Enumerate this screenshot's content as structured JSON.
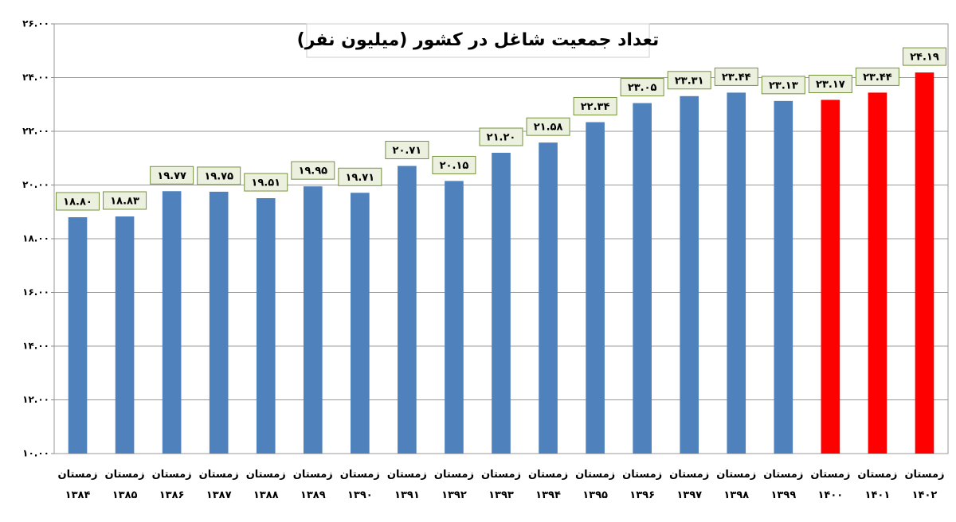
{
  "chart_data": {
    "type": "bar",
    "title": "تعداد جمعیت شاغل در کشور (میلیون نفر)",
    "categories": [
      "زمستان ۱۳۸۴",
      "زمستان ۱۳۸۵",
      "زمستان ۱۳۸۶",
      "زمستان ۱۳۸۷",
      "زمستان ۱۳۸۸",
      "زمستان ۱۳۸۹",
      "زمستان ۱۳۹۰",
      "زمستان ۱۳۹۱",
      "زمستان ۱۳۹۲",
      "زمستان ۱۳۹۳",
      "زمستان ۱۳۹۴",
      "زمستان ۱۳۹۵",
      "زمستان ۱۳۹۶",
      "زمستان ۱۳۹۷",
      "زمستان ۱۳۹۸",
      "زمستان ۱۳۹۹",
      "زمستان ۱۴۰۰",
      "زمستان ۱۴۰۱",
      "زمستان ۱۴۰۲"
    ],
    "values": [
      18.8,
      18.83,
      19.77,
      19.75,
      19.51,
      19.95,
      19.71,
      20.71,
      20.15,
      21.2,
      21.58,
      22.34,
      23.05,
      23.31,
      23.44,
      23.13,
      23.17,
      23.44,
      24.19
    ],
    "value_labels": [
      "۱۸.۸۰",
      "۱۸.۸۳",
      "۱۹.۷۷",
      "۱۹.۷۵",
      "۱۹.۵۱",
      "۱۹.۹۵",
      "۱۹.۷۱",
      "۲۰.۷۱",
      "۲۰.۱۵",
      "۲۱.۲۰",
      "۲۱.۵۸",
      "۲۲.۳۴",
      "۲۳.۰۵",
      "۲۳.۳۱",
      "۲۳.۴۴",
      "۲۳.۱۳",
      "۲۳.۱۷",
      "۲۳.۴۴",
      "۲۴.۱۹"
    ],
    "colors": [
      "#4f81bd",
      "#4f81bd",
      "#4f81bd",
      "#4f81bd",
      "#4f81bd",
      "#4f81bd",
      "#4f81bd",
      "#4f81bd",
      "#4f81bd",
      "#4f81bd",
      "#4f81bd",
      "#4f81bd",
      "#4f81bd",
      "#4f81bd",
      "#4f81bd",
      "#4f81bd",
      "#ff0000",
      "#ff0000",
      "#ff0000"
    ],
    "ylim": [
      10,
      26
    ],
    "yticks": [
      {
        "value": 10,
        "label": "۱۰.۰۰"
      },
      {
        "value": 12,
        "label": "۱۲.۰۰"
      },
      {
        "value": 14,
        "label": "۱۴.۰۰"
      },
      {
        "value": 16,
        "label": "۱۶.۰۰"
      },
      {
        "value": 18,
        "label": "۱۸.۰۰"
      },
      {
        "value": 20,
        "label": "۲۰.۰۰"
      },
      {
        "value": 22,
        "label": "۲۲.۰۰"
      },
      {
        "value": 24,
        "label": "۲۴.۰۰"
      },
      {
        "value": 26,
        "label": "۲۶.۰۰"
      }
    ],
    "grid": true
  }
}
